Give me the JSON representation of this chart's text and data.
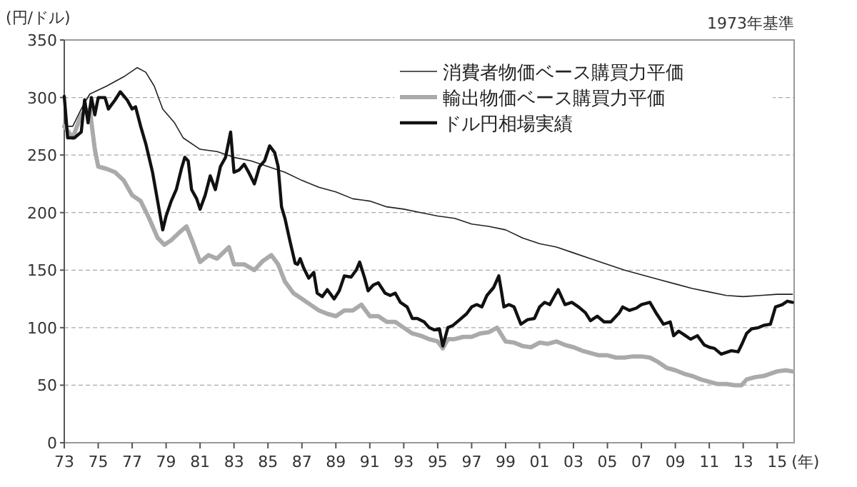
{
  "chart_data": {
    "type": "line",
    "ylabel": "(円/ドル)",
    "xlabel": "(年)",
    "annotations": [
      "1973年基準"
    ],
    "xlim": [
      1973,
      2016
    ],
    "ylim": [
      0,
      350
    ],
    "xticks": [
      {
        "value": 1973,
        "label": "73"
      },
      {
        "value": 1975,
        "label": "75"
      },
      {
        "value": 1977,
        "label": "77"
      },
      {
        "value": 1979,
        "label": "79"
      },
      {
        "value": 1981,
        "label": "81"
      },
      {
        "value": 1983,
        "label": "83"
      },
      {
        "value": 1985,
        "label": "85"
      },
      {
        "value": 1987,
        "label": "87"
      },
      {
        "value": 1989,
        "label": "89"
      },
      {
        "value": 1991,
        "label": "91"
      },
      {
        "value": 1993,
        "label": "93"
      },
      {
        "value": 1995,
        "label": "95"
      },
      {
        "value": 1997,
        "label": "97"
      },
      {
        "value": 1999,
        "label": "99"
      },
      {
        "value": 2001,
        "label": "01"
      },
      {
        "value": 2003,
        "label": "03"
      },
      {
        "value": 2005,
        "label": "05"
      },
      {
        "value": 2007,
        "label": "07"
      },
      {
        "value": 2009,
        "label": "09"
      },
      {
        "value": 2011,
        "label": "11"
      },
      {
        "value": 2013,
        "label": "13"
      },
      {
        "value": 2015,
        "label": "15"
      }
    ],
    "yticks": [
      0,
      50,
      100,
      150,
      200,
      250,
      300,
      350
    ],
    "grid": "y",
    "legend": "top right",
    "series": [
      {
        "name": "消費者物価ベース購買力平価",
        "color": "#222222",
        "x": [
          1973.0,
          1973.5,
          1974.0,
          1974.5,
          1975.5,
          1976.5,
          1977.3,
          1977.8,
          1978.3,
          1978.8,
          1979.5,
          1980,
          1981,
          1982,
          1983,
          1984,
          1985,
          1986,
          1987,
          1988,
          1989,
          1990,
          1991,
          1992,
          1993,
          1994,
          1995,
          1996,
          1997,
          1998,
          1999,
          2000,
          2001,
          2002,
          2003,
          2004,
          2005,
          2006,
          2007,
          2008,
          2009,
          2010,
          2011,
          2012,
          2013,
          2014,
          2015,
          2015.9
        ],
        "values": [
          275,
          275,
          290,
          303,
          310,
          318,
          326,
          322,
          310,
          290,
          278,
          265,
          255,
          253,
          248,
          245,
          240,
          235,
          228,
          222,
          218,
          212,
          210,
          205,
          203,
          200,
          197,
          195,
          190,
          188,
          185,
          178,
          173,
          170,
          165,
          160,
          155,
          150,
          146,
          142,
          138,
          134,
          131,
          128,
          127,
          128,
          129,
          129
        ]
      },
      {
        "name": "輸出物価ベース購買力平価",
        "color": "#aaaaaa",
        "x": [
          1973.0,
          1973.5,
          1974.0,
          1974.5,
          1974.8,
          1975.0,
          1975.5,
          1976.0,
          1976.5,
          1977.0,
          1977.5,
          1978.0,
          1978.5,
          1978.9,
          1979.3,
          1979.8,
          1980.2,
          1980.6,
          1981.0,
          1981.5,
          1982.0,
          1982.7,
          1983.0,
          1983.6,
          1984.2,
          1984.7,
          1985.2,
          1985.6,
          1986.0,
          1986.5,
          1987.0,
          1987.5,
          1988.0,
          1988.5,
          1989.0,
          1989.5,
          1990.0,
          1990.5,
          1991.0,
          1991.5,
          1992.0,
          1992.5,
          1993.0,
          1993.5,
          1994.0,
          1994.5,
          1995.0,
          1995.3,
          1995.6,
          1996.0,
          1996.5,
          1997.0,
          1997.5,
          1998.0,
          1998.5,
          1999.0,
          1999.5,
          2000.0,
          2000.5,
          2001.0,
          2001.5,
          2002.0,
          2002.5,
          2003.0,
          2003.5,
          2004.0,
          2004.5,
          2005.0,
          2005.5,
          2006.0,
          2006.5,
          2007.0,
          2007.5,
          2008.0,
          2008.5,
          2009.0,
          2009.5,
          2010.0,
          2010.5,
          2011.0,
          2011.5,
          2012.0,
          2012.5,
          2012.9,
          2013.2,
          2013.7,
          2014.2,
          2014.6,
          2015.0,
          2015.5,
          2015.9
        ],
        "values": [
          275,
          265,
          285,
          290,
          255,
          240,
          238,
          235,
          228,
          215,
          210,
          195,
          178,
          172,
          176,
          183,
          188,
          173,
          157,
          163,
          160,
          170,
          155,
          155,
          150,
          158,
          163,
          155,
          140,
          130,
          125,
          120,
          115,
          112,
          110,
          115,
          115,
          120,
          110,
          110,
          105,
          105,
          100,
          95,
          93,
          90,
          88,
          82,
          90,
          90,
          92,
          92,
          95,
          96,
          100,
          88,
          87,
          84,
          83,
          87,
          86,
          88,
          85,
          83,
          80,
          78,
          76,
          76,
          74,
          74,
          75,
          75,
          74,
          70,
          65,
          63,
          60,
          58,
          55,
          53,
          51,
          51,
          50,
          50,
          55,
          57,
          58,
          60,
          62,
          63,
          62
        ]
      },
      {
        "name": "ドル円相場実績",
        "color": "#111111",
        "x": [
          1973.0,
          1973.2,
          1973.6,
          1974.0,
          1974.2,
          1974.4,
          1974.6,
          1974.8,
          1975.0,
          1975.4,
          1975.6,
          1976.0,
          1976.3,
          1976.7,
          1977.0,
          1977.2,
          1977.5,
          1977.8,
          1978.2,
          1978.5,
          1978.8,
          1979.0,
          1979.3,
          1979.6,
          1979.9,
          1980.1,
          1980.3,
          1980.5,
          1980.8,
          1981.0,
          1981.3,
          1981.6,
          1981.9,
          1982.2,
          1982.5,
          1982.8,
          1983.0,
          1983.3,
          1983.6,
          1983.9,
          1984.2,
          1984.5,
          1984.8,
          1985.1,
          1985.4,
          1985.6,
          1985.8,
          1986.0,
          1986.3,
          1986.6,
          1986.75,
          1986.9,
          1987.1,
          1987.4,
          1987.7,
          1987.9,
          1988.2,
          1988.5,
          1988.9,
          1989.2,
          1989.5,
          1989.9,
          1990.2,
          1990.4,
          1990.7,
          1990.9,
          1991.2,
          1991.5,
          1991.9,
          1992.2,
          1992.5,
          1992.8,
          1993.2,
          1993.5,
          1993.8,
          1994.2,
          1994.5,
          1994.8,
          1995.1,
          1995.3,
          1995.6,
          1995.9,
          1996.3,
          1996.7,
          1997.0,
          1997.3,
          1997.6,
          1997.9,
          1998.3,
          1998.6,
          1998.75,
          1998.9,
          1999.2,
          1999.5,
          1999.9,
          2000.3,
          2000.7,
          2001.0,
          2001.3,
          2001.6,
          2001.9,
          2002.1,
          2002.5,
          2002.9,
          2003.3,
          2003.7,
          2004.0,
          2004.4,
          2004.8,
          2005.2,
          2005.7,
          2005.9,
          2006.3,
          2006.7,
          2007.0,
          2007.5,
          2007.9,
          2008.3,
          2008.7,
          2008.9,
          2009.2,
          2009.6,
          2009.9,
          2010.3,
          2010.7,
          2011.0,
          2011.3,
          2011.7,
          2011.9,
          2012.3,
          2012.7,
          2012.9,
          2013.2,
          2013.5,
          2013.9,
          2014.2,
          2014.6,
          2014.9,
          2015.3,
          2015.6,
          2015.9
        ],
        "values": [
          301,
          265,
          265,
          270,
          298,
          278,
          300,
          285,
          300,
          300,
          290,
          298,
          305,
          298,
          290,
          292,
          275,
          260,
          235,
          210,
          185,
          197,
          210,
          220,
          238,
          248,
          245,
          220,
          212,
          203,
          215,
          232,
          220,
          240,
          248,
          270,
          235,
          237,
          242,
          234,
          225,
          240,
          245,
          258,
          252,
          240,
          205,
          195,
          175,
          156,
          155,
          160,
          152,
          143,
          148,
          130,
          127,
          133,
          125,
          132,
          145,
          144,
          150,
          157,
          143,
          132,
          137,
          139,
          130,
          128,
          130,
          122,
          118,
          108,
          108,
          105,
          100,
          98,
          99,
          84,
          100,
          102,
          107,
          112,
          118,
          120,
          118,
          128,
          135,
          145,
          132,
          118,
          120,
          118,
          103,
          107,
          108,
          118,
          122,
          120,
          128,
          133,
          120,
          122,
          118,
          113,
          106,
          110,
          105,
          105,
          113,
          118,
          115,
          117,
          120,
          122,
          112,
          103,
          105,
          93,
          97,
          93,
          90,
          93,
          85,
          83,
          82,
          77,
          78,
          80,
          79,
          85,
          95,
          99,
          100,
          102,
          103,
          118,
          120,
          123,
          122
        ]
      }
    ]
  }
}
